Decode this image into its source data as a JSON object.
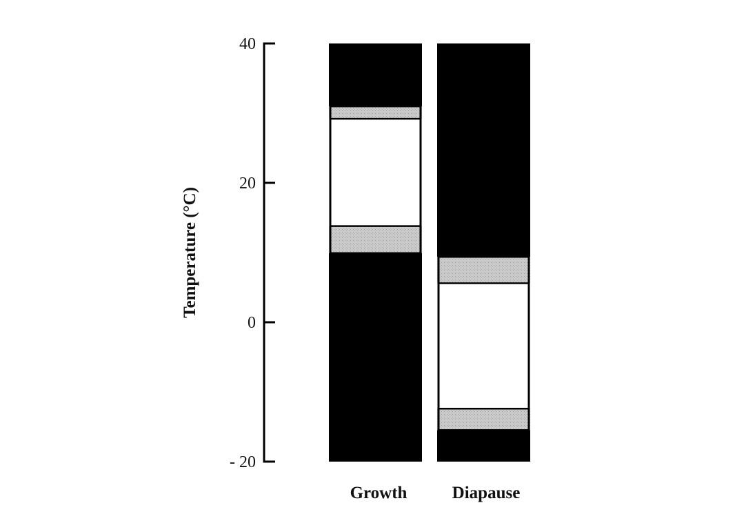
{
  "chart_data": {
    "type": "bar",
    "title": "",
    "xlabel": "",
    "ylabel": "Temperature (°C)",
    "ylim": [
      -20,
      40
    ],
    "yticks": [
      {
        "value": 40,
        "label": "40"
      },
      {
        "value": 20,
        "label": "20"
      },
      {
        "value": 0,
        "label": "0"
      },
      {
        "value": -20,
        "label": "- 20"
      }
    ],
    "grid": false,
    "categories": [
      "Growth",
      "Diapause"
    ],
    "bars": [
      {
        "category": "Growth",
        "segments": [
          {
            "from": -20,
            "to": 9.9,
            "shade": "black"
          },
          {
            "from": 9.9,
            "to": 13.8,
            "shade": "stippled"
          },
          {
            "from": 13.8,
            "to": 29.2,
            "shade": "white"
          },
          {
            "from": 29.2,
            "to": 31.0,
            "shade": "stippled"
          },
          {
            "from": 31.0,
            "to": 40,
            "shade": "black"
          }
        ]
      },
      {
        "category": "Diapause",
        "segments": [
          {
            "from": -20,
            "to": -15.5,
            "shade": "black"
          },
          {
            "from": -15.5,
            "to": -12.4,
            "shade": "stippled"
          },
          {
            "from": -12.4,
            "to": 5.6,
            "shade": "white"
          },
          {
            "from": 5.6,
            "to": 9.4,
            "shade": "stippled"
          },
          {
            "from": 9.4,
            "to": 40,
            "shade": "black"
          }
        ]
      }
    ],
    "colors": {
      "black": "#000000",
      "stippled": "#c9c9c9",
      "white": "#ffffff"
    }
  }
}
